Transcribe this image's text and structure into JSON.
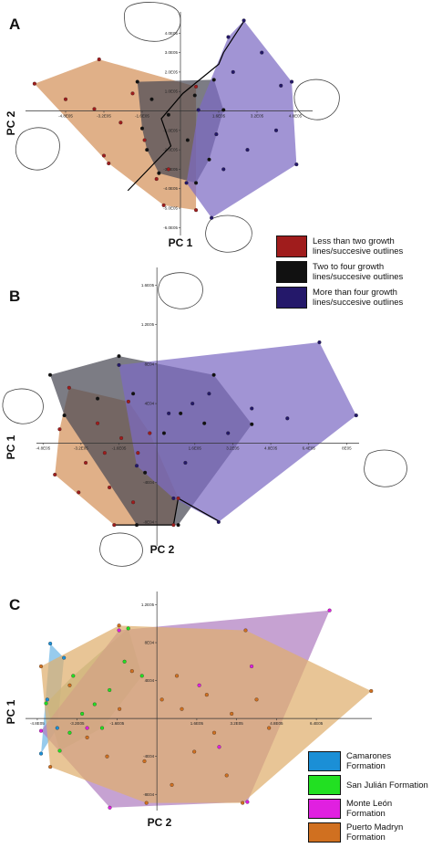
{
  "chart_data": [
    {
      "type": "scatter",
      "panel": "A",
      "xlabel": "PC 1",
      "ylabel": "PC 2",
      "xlim": [
        -640000,
        560000
      ],
      "ylim": [
        -650000,
        500000
      ],
      "xticks": [
        {
          "value": -480000,
          "label": "-4.8E05"
        },
        {
          "value": -320000,
          "label": "-3.2E05"
        },
        {
          "value": -160000,
          "label": "-1.6E05"
        },
        {
          "value": 160000,
          "label": "1.6E05"
        },
        {
          "value": 320000,
          "label": "3.2E05"
        },
        {
          "value": 480000,
          "label": "4.8E05"
        }
      ],
      "yticks": [
        {
          "value": 400000,
          "label": "4.0E05"
        },
        {
          "value": 300000,
          "label": "3.0E05"
        },
        {
          "value": 200000,
          "label": "2.0E05"
        },
        {
          "value": 100000,
          "label": "1.0E05"
        },
        {
          "value": -100000,
          "label": "-1.0E05"
        },
        {
          "value": -200000,
          "label": "-2.0E05"
        },
        {
          "value": -300000,
          "label": "-3.0E05"
        },
        {
          "value": -400000,
          "label": "-4.0E05"
        },
        {
          "value": -500000,
          "label": "-5.0E05"
        },
        {
          "value": -600000,
          "label": "-6.0E05"
        }
      ],
      "series": [
        {
          "name": "Less than two growth lines/succesive outlines",
          "color": "#a01c1c",
          "hull_color": "#d4915a",
          "x": [
            -610000,
            -340000,
            65000,
            65000,
            -70000,
            -320000,
            -480000,
            -360000,
            -250000,
            -150000,
            -300000,
            -100000,
            -50000,
            -200000
          ],
          "y": [
            140000,
            265000,
            125000,
            -510000,
            -485000,
            -230000,
            60000,
            10000,
            -60000,
            -150000,
            -270000,
            -350000,
            -300000,
            90000
          ]
        },
        {
          "name": "Two to four growth lines/succesive outlines",
          "color": "#111111",
          "hull_color": "#4a4a55",
          "x": [
            -180000,
            140000,
            180000,
            120000,
            65000,
            -90000,
            -160000,
            -120000,
            -50000,
            30000,
            -140000,
            60000
          ],
          "y": [
            150000,
            160000,
            5000,
            -250000,
            -370000,
            -320000,
            -90000,
            60000,
            -20000,
            -150000,
            -200000,
            80000
          ]
        },
        {
          "name": "More than four growth lines/succesive outlines",
          "color": "#24186a",
          "hull_color": "#7d6bc4",
          "x": [
            265000,
            465000,
            485000,
            130000,
            25000,
            75000,
            200000,
            340000,
            400000,
            280000,
            180000,
            420000,
            150000,
            220000
          ],
          "y": [
            465000,
            150000,
            -275000,
            -550000,
            -370000,
            5000,
            380000,
            300000,
            -100000,
            -200000,
            -300000,
            130000,
            -120000,
            200000
          ]
        }
      ],
      "trajectory": {
        "x": [
          -220000,
          -40000,
          -80000,
          10000,
          160000,
          180000,
          270000
        ],
        "y": [
          -410000,
          -180000,
          -40000,
          90000,
          240000,
          300000,
          470000
        ]
      }
    },
    {
      "type": "scatter",
      "panel": "B",
      "xlabel": "PC 2",
      "ylabel": "PC 1",
      "xlim": [
        -500000,
        860000
      ],
      "ylim": [
        -106000,
        176000
      ],
      "xticks": [
        {
          "value": -480000,
          "label": "-4.8E05"
        },
        {
          "value": -320000,
          "label": "-3.2E05"
        },
        {
          "value": -160000,
          "label": "-1.6E05"
        },
        {
          "value": 160000,
          "label": "1.6E05"
        },
        {
          "value": 320000,
          "label": "3.2E05"
        },
        {
          "value": 480000,
          "label": "4.8E05"
        },
        {
          "value": 640000,
          "label": "6.4E05"
        },
        {
          "value": 800000,
          "label": "8E05"
        }
      ],
      "yticks": [
        {
          "value": 160000,
          "label": "1.6E05"
        },
        {
          "value": 120000,
          "label": "1.2E05"
        },
        {
          "value": 80000,
          "label": "8E04"
        },
        {
          "value": 40000,
          "label": "4E04"
        },
        {
          "value": -40000,
          "label": "-4E04"
        },
        {
          "value": -80000,
          "label": "-8E04"
        }
      ],
      "series": [
        {
          "color": "#a01c1c",
          "hull_color": "#d4915a",
          "x": [
            -370000,
            -120000,
            90000,
            70000,
            -180000,
            -430000,
            -410000,
            -250000,
            -150000,
            -300000,
            -200000,
            -80000,
            -330000,
            -100000,
            -30000,
            -220000
          ],
          "y": [
            56000,
            42000,
            -56000,
            -83000,
            -83000,
            -32000,
            14000,
            20000,
            5000,
            -20000,
            -45000,
            -10000,
            -50000,
            -60000,
            10000,
            -10000
          ]
        },
        {
          "color": "#111111",
          "hull_color": "#4a4a55",
          "x": [
            -450000,
            -160000,
            240000,
            400000,
            90000,
            -85000,
            -390000,
            -100000,
            100000,
            -250000,
            30000,
            -50000,
            200000
          ],
          "y": [
            69000,
            88000,
            69000,
            19000,
            -83000,
            -83000,
            28000,
            50000,
            30000,
            45000,
            10000,
            -30000,
            20000
          ]
        },
        {
          "color": "#24186a",
          "hull_color": "#7d6bc4",
          "x": [
            -160000,
            685000,
            840000,
            260000,
            70000,
            -85000,
            150000,
            300000,
            550000,
            220000,
            50000,
            400000,
            120000
          ],
          "y": [
            79000,
            102000,
            28000,
            -80000,
            -56000,
            -23000,
            40000,
            10000,
            25000,
            50000,
            30000,
            35000,
            -20000
          ]
        }
      ],
      "trajectory": {
        "x": [
          -180000,
          70000,
          90000,
          260000
        ],
        "y": [
          -83000,
          -83000,
          -56000,
          -79000
        ]
      }
    },
    {
      "type": "scatter",
      "panel": "C",
      "xlabel": "PC 2",
      "ylabel": "PC 1",
      "xlim": [
        -520000,
        870000
      ],
      "ylim": [
        -99000,
        132000
      ],
      "xticks": [
        {
          "value": -480000,
          "label": "-4.8E05"
        },
        {
          "value": -320000,
          "label": "-3.2E05"
        },
        {
          "value": -160000,
          "label": "-1.6E05"
        },
        {
          "value": 160000,
          "label": "1.6E05"
        },
        {
          "value": 320000,
          "label": "3.2E05"
        },
        {
          "value": 480000,
          "label": "4.8E05"
        },
        {
          "value": 640000,
          "label": "6.4E05"
        }
      ],
      "yticks": [
        {
          "value": 120000,
          "label": "1.2E05"
        },
        {
          "value": 80000,
          "label": "8E04"
        },
        {
          "value": 40000,
          "label": "4E04"
        },
        {
          "value": -40000,
          "label": "-4E04"
        },
        {
          "value": -80000,
          "label": "-8E04"
        }
      ],
      "series": [
        {
          "name": "Camarones Formation",
          "color": "#1b8fd6",
          "hull_color": "#6fb7e6",
          "x": [
            -428000,
            -373000,
            -465000,
            -440000,
            -400000
          ],
          "y": [
            79000,
            64000,
            -37000,
            20000,
            -10000
          ]
        },
        {
          "name": "San Julián Formation",
          "color": "#22e022",
          "hull_color": "#9fc49a",
          "x": [
            -115000,
            -60000,
            -390000,
            -445000,
            -336000,
            -190000,
            -250000,
            -300000,
            -130000,
            -220000,
            -350000
          ],
          "y": [
            95000,
            45000,
            -34000,
            16000,
            45000,
            30000,
            15000,
            5000,
            60000,
            -10000,
            -15000
          ]
        },
        {
          "name": "Monte León Formation",
          "color": "#e020e0",
          "hull_color": "#b07ec0",
          "x": [
            693000,
            363000,
            -189000,
            -465000,
            -152000,
            380000,
            170000,
            250000,
            -280000
          ],
          "y": [
            114000,
            -88000,
            -94000,
            -13000,
            93000,
            55000,
            35000,
            -30000,
            -10000
          ]
        },
        {
          "name": "Puerto Madryn Formation",
          "color": "#d07020",
          "hull_color": "#dfae6e",
          "x": [
            -465000,
            -152000,
            356000,
            860000,
            344000,
            -42000,
            -428000,
            -100000,
            20000,
            100000,
            200000,
            300000,
            450000,
            150000,
            -50000,
            280000,
            60000,
            -200000,
            -280000,
            -350000,
            80000,
            400000,
            -150000,
            230000
          ],
          "y": [
            55000,
            98000,
            93000,
            29000,
            -89000,
            -89000,
            -51000,
            50000,
            20000,
            10000,
            25000,
            5000,
            -10000,
            -35000,
            -45000,
            -60000,
            -70000,
            -40000,
            -20000,
            35000,
            45000,
            20000,
            10000,
            -15000
          ]
        }
      ]
    }
  ]
}
